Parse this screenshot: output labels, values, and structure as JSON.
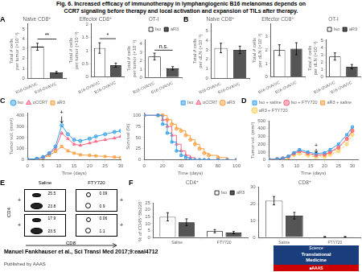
{
  "title": "Fig. 6. Increased efficacy of immunotherapy in lymphangiogenic B16 melanomas depends on",
  "subtitle": "    CCR7 signaling before therapy and local activation and expansion of TILs after therapy.",
  "annotations": [
    "Manuel Fankhauser et al., Sci Transl Med 2017;9:eaal4712",
    "Published by AAAS",
    "Science",
    "Translational",
    "Medicine",
    "■AAAS"
  ],
  "chart_data": [
    {
      "type": "bar",
      "label": "A",
      "title": "Naive CD8⁺",
      "ylabel": "Total # cells\nper tumor (×10⁻³)",
      "categories": [
        "B16-OVA/VC",
        "B16-OVA/VC"
      ],
      "series": [
        {
          "name": "Iso",
          "color": "white",
          "values": [
            3.2,
            null
          ],
          "error": [
            0.35,
            null
          ]
        },
        {
          "name": "aR3",
          "color": "#555555",
          "values": [
            null,
            0.6
          ],
          "error": [
            null,
            0.1
          ]
        }
      ],
      "ylim": [
        0,
        5.5025
      ],
      "yticks": [
        0,
        1,
        2,
        3,
        4,
        5
      ],
      "grid": false,
      "legend": false,
      "annotations": [
        "**"
      ]
    },
    {
      "type": "bar",
      "title": "Effector CD8⁺",
      "ylabel": "Total # cells\nper tumor (×10⁻³)",
      "categories": [
        "B16-OVA/VC",
        "B16-OVA/VC"
      ],
      "series": [
        {
          "name": "Iso",
          "color": "white",
          "values": [
            1.1,
            null
          ],
          "error": [
            0.2,
            null
          ]
        },
        {
          "name": "aR3",
          "color": "#555555",
          "values": [
            null,
            0.45
          ],
          "error": [
            null,
            0.08
          ]
        }
      ],
      "ylim": [
        0,
        2.015
      ],
      "yticks": [
        0,
        0.5,
        1,
        1.5,
        2
      ],
      "grid": false,
      "legend": false,
      "annotations": [
        "*"
      ]
    },
    {
      "type": "bar",
      "title": "OT-I",
      "ylabel": "Total # cells\nper tumor (×10⁻³)",
      "categories": [
        "B16-OVA/VC",
        "B16-OVA/VC"
      ],
      "series": [
        {
          "name": "Iso",
          "color": "white",
          "values": [
            2.5,
            null
          ],
          "error": [
            0.4,
            null
          ]
        },
        {
          "name": "aR3",
          "color": "#555555",
          "values": [
            null,
            1.1
          ],
          "error": [
            null,
            0.2
          ]
        }
      ],
      "ylim": [
        0,
        4.495
      ],
      "yticks": [
        0,
        1,
        2,
        3,
        4
      ],
      "grid": false,
      "legend": "upper right",
      "annotations": [
        "n.s."
      ]
    },
    {
      "type": "bar",
      "label": "B",
      "title": "Naive CD8⁺",
      "ylabel": "Total # cells\nper dLN (×10⁻³)",
      "categories": [
        "B16-OVA/VC",
        "B16-OVA/VC"
      ],
      "series": [
        {
          "name": "Iso",
          "color": "white",
          "values": [
            3.2,
            null
          ],
          "error": [
            0.5,
            null
          ]
        },
        {
          "name": "aR3",
          "color": "#555555",
          "values": [
            null,
            3.0
          ],
          "error": [
            null,
            0.4
          ]
        }
      ],
      "ylim": [
        0,
        5.735
      ],
      "yticks": [
        0,
        1,
        2,
        3,
        4,
        5
      ],
      "grid": false,
      "legend": false
    },
    {
      "type": "bar",
      "title": "Effector CD8⁺",
      "ylabel": "Total # cells\nper dLN (×10⁻³)",
      "categories": [
        "B16-OVA/VC",
        "B16-OVA/VC"
      ],
      "series": [
        {
          "name": "Iso",
          "color": "white",
          "values": [
            2.0,
            null
          ],
          "error": [
            0.4,
            null
          ]
        },
        {
          "name": "aR3",
          "color": "#555555",
          "values": [
            null,
            2.1
          ],
          "error": [
            null,
            0.45
          ]
        }
      ],
      "ylim": [
        0,
        3.9525
      ],
      "yticks": [
        0,
        1,
        2,
        3
      ],
      "grid": false,
      "legend": false
    },
    {
      "type": "bar",
      "title": "OT-I",
      "ylabel": "Total # cells\nper dLN (×10⁻³)",
      "categories": [
        "B16-OVA/VC",
        "B16-OVA/VC"
      ],
      "series": [
        {
          "name": "Iso",
          "color": "white",
          "values": [
            2.8,
            null
          ],
          "error": [
            0.5,
            null
          ]
        },
        {
          "name": "aR3",
          "color": "#555555",
          "values": [
            null,
            1.4
          ],
          "error": [
            null,
            0.3
          ]
        }
      ],
      "ylim": [
        0,
        5.115
      ],
      "yticks": [
        0,
        1,
        2,
        3,
        4,
        5
      ],
      "grid": false,
      "legend": "upper right"
    },
    {
      "type": "line",
      "label": "C",
      "xlabel": "Time (days)",
      "ylabel": "Tumor vol. (mm³)",
      "x": [
        0,
        3,
        5,
        7,
        9,
        11,
        13,
        15,
        17,
        20,
        22,
        25,
        28,
        30
      ],
      "series": [
        {
          "name": "Iso",
          "marker": "circle",
          "values": [
            5,
            10,
            25,
            60,
            120,
            310,
            230,
            180,
            170,
            190,
            210,
            230,
            250,
            260
          ]
        },
        {
          "name": "αCCR7",
          "marker": "triangle",
          "values": [
            5,
            9,
            22,
            55,
            100,
            240,
            190,
            140,
            130,
            150,
            165,
            180,
            195,
            210
          ]
        },
        {
          "name": "aR3",
          "marker": "square",
          "values": [
            5,
            8,
            18,
            40,
            75,
            120,
            80,
            60,
            45,
            40,
            35,
            30,
            25,
            20
          ]
        }
      ],
      "xlim": [
        0,
        30
      ],
      "ylim": [
        0,
        420
      ],
      "xticks": [
        0,
        5,
        10,
        15,
        20,
        25,
        30
      ],
      "yticks": [
        0,
        100,
        200,
        300,
        400
      ],
      "grid": false,
      "legend": "upper left",
      "annotations": [
        {
          "text": "+",
          "x": 11,
          "y": 398,
          "arrow_y": [
            390,
            330
          ]
        }
      ]
    },
    {
      "type": "step",
      "xlabel": "Time (days)",
      "ylabel": "Survival (%)",
      "x": [
        0,
        15,
        20,
        25,
        30,
        35,
        40,
        45,
        50,
        55,
        60,
        65,
        70,
        80,
        90,
        100
      ],
      "series": [
        {
          "name": "Iso",
          "marker": "square",
          "values": [
            100,
            100,
            80,
            60,
            40,
            20,
            10,
            5,
            0,
            0,
            0,
            0,
            0,
            0,
            0,
            0
          ]
        },
        {
          "name": "αCCR7",
          "marker": "triangle",
          "values": [
            100,
            100,
            90,
            75,
            55,
            35,
            20,
            10,
            5,
            0,
            0,
            0,
            0,
            0,
            0,
            0
          ]
        },
        {
          "name": "aR3",
          "marker": "circle",
          "values": [
            100,
            100,
            100,
            90,
            80,
            70,
            65,
            55,
            45,
            35,
            25,
            15,
            10,
            5,
            0,
            0
          ]
        }
      ],
      "xlim": [
        0,
        100
      ],
      "ylim": [
        0,
        105
      ],
      "xticks": [
        0,
        20,
        40,
        60,
        80,
        100
      ],
      "yticks": [
        0,
        25,
        50,
        75,
        100
      ],
      "grid": false,
      "legend": "upper right"
    },
    {
      "type": "line",
      "label": "D",
      "xlabel": "Time (days)",
      "ylabel": "Tumor vol. (mm³)",
      "x": [
        0,
        3,
        5,
        7,
        9,
        11,
        14,
        17,
        20,
        22,
        25,
        28,
        30
      ],
      "series": [
        {
          "name": "Iso + saline",
          "marker": "square",
          "line_style": "solid",
          "values": [
            5,
            10,
            20,
            45,
            90,
            130,
            100,
            80,
            90,
            130,
            200,
            320,
            420
          ]
        },
        {
          "name": "Iso + FTY720",
          "marker": "circle",
          "line_style": "solid",
          "values": [
            5,
            9,
            18,
            40,
            80,
            110,
            85,
            60,
            70,
            100,
            160,
            270,
            370
          ]
        },
        {
          "name": "aR3 + saline",
          "marker": "square",
          "line_style": "dashed",
          "values": [
            5,
            10,
            18,
            40,
            80,
            110,
            80,
            55,
            60,
            90,
            150,
            260,
            380
          ]
        },
        {
          "name": "aR3 + FTY720",
          "marker": "circle",
          "line_style": "dashed",
          "values": [
            5,
            8,
            15,
            32,
            60,
            80,
            55,
            35,
            40,
            65,
            110,
            200,
            320
          ]
        }
      ],
      "xlim": [
        0,
        32
      ],
      "ylim": [
        0,
        500
      ],
      "xticks": [
        0,
        5,
        10,
        15,
        20,
        25,
        30
      ],
      "yticks": [
        0,
        100,
        200,
        300,
        400,
        500
      ],
      "grid": false,
      "legend": "upper left",
      "annotations": [
        {
          "text": "+",
          "x": 17,
          "y": 148,
          "arrow_y": [
            140,
            90
          ]
        }
      ]
    },
    {
      "type": "flow_cytometry",
      "label": "E",
      "columns": [
        "Saline",
        "FTY720"
      ],
      "xlabel": "CD8",
      "ylabel": "CD4",
      "rows": [
        {
          "label": "+",
          "right_label": "+",
          "cells": [
            {
              "top": "25.5",
              "bottom": "23.8"
            },
            {
              "top": "0.09",
              "bottom": "0.9"
            }
          ]
        },
        {
          "label": "+",
          "right_label": "+",
          "cells": [
            {
              "top": "17.9",
              "bottom": "23.5"
            },
            {
              "top": "0.06",
              "bottom": "1.1"
            }
          ]
        }
      ]
    },
    {
      "type": "bar",
      "label": "F",
      "title": "CD4⁺",
      "ylabel": "% of CD45⁺Bb220⁻",
      "categories": [
        "Saline",
        "FTY720"
      ],
      "series": [
        {
          "name": "Iso",
          "color": "white",
          "values": [
            15.0,
            4.5
          ],
          "error": [
            3.0,
            1.2
          ]
        },
        {
          "name": "aR3",
          "color": "#555555",
          "values": [
            11.0,
            3.5
          ],
          "error": [
            2.5,
            0.8
          ]
        }
      ],
      "ylim": [
        0,
        25
      ],
      "yticks": [
        0,
        5,
        10,
        15,
        20,
        25
      ],
      "grid": false,
      "legend": "upper right"
    },
    {
      "type": "bar",
      "title": "CD8⁺",
      "categories": [
        "Saline",
        "FTY720"
      ],
      "series": [
        {
          "name": "Iso",
          "color": "white",
          "values": [
            22.0,
            0.4
          ],
          "error": [
            2.5,
            0.15
          ]
        },
        {
          "name": "aR3",
          "color": "#555555",
          "values": [
            13.0,
            0.4
          ],
          "error": [
            2.0,
            0.15
          ]
        }
      ],
      "ylim": [
        0,
        30
      ],
      "yticks": [
        0,
        10,
        20,
        30
      ],
      "grid": false,
      "legend": false
    }
  ]
}
